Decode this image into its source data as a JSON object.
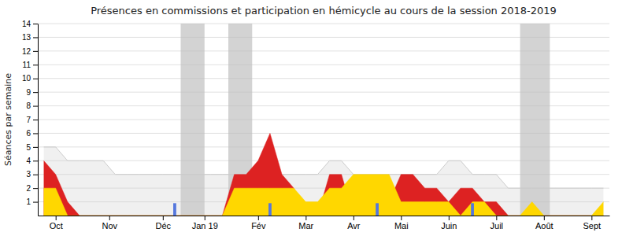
{
  "chart_data": {
    "type": "area",
    "title": "Présences en commissions et participation en hémicycle au cours de la session 2018-2019",
    "y_label": "Séances par semaine",
    "x": [
      0,
      1,
      2,
      3,
      4,
      5,
      6,
      7,
      8,
      9,
      10,
      11,
      12,
      13,
      14,
      15,
      16,
      17,
      18,
      19,
      20,
      21,
      22,
      23,
      24,
      25,
      26,
      27,
      28,
      29,
      30,
      31,
      32,
      33,
      34,
      35,
      36,
      37,
      38,
      39,
      40,
      41,
      42,
      43,
      44,
      45,
      46,
      47
    ],
    "xlim": [
      -0.5,
      47.5
    ],
    "xticks": [
      {
        "value": 1,
        "label": "Oct"
      },
      {
        "value": 5.5,
        "label": "Nov"
      },
      {
        "value": 10,
        "label": "Déc"
      },
      {
        "value": 13.5,
        "label": "Jan 19"
      },
      {
        "value": 18,
        "label": "Fév"
      },
      {
        "value": 22,
        "label": "Mar"
      },
      {
        "value": 26,
        "label": "Avr"
      },
      {
        "value": 30,
        "label": "Mai"
      },
      {
        "value": 34,
        "label": "Juin"
      },
      {
        "value": 38,
        "label": "Juil"
      },
      {
        "value": 42,
        "label": "Août"
      },
      {
        "value": 46,
        "label": "Sept"
      }
    ],
    "ylim": [
      0,
      14
    ],
    "yticks": [
      1,
      2,
      3,
      4,
      5,
      6,
      7,
      8,
      9,
      10,
      11,
      12,
      13,
      14
    ],
    "grid": true,
    "shaded_regions": {
      "color": "#bbbbbb",
      "ranges": [
        [
          11.5,
          13.5
        ],
        [
          15.5,
          17.5
        ],
        [
          40.0,
          42.5
        ]
      ]
    },
    "series": [
      {
        "type": "area",
        "color": "#cccccc",
        "values": [
          5,
          5,
          4,
          4,
          4,
          4,
          3,
          3,
          3,
          3,
          3,
          3,
          3,
          3,
          3,
          3,
          3,
          3,
          3,
          3,
          3,
          3,
          3,
          3,
          4,
          4,
          3,
          3,
          3,
          3,
          3,
          3,
          3,
          3,
          4,
          4,
          3,
          3,
          3,
          2,
          2,
          2,
          2,
          2,
          2,
          2,
          2,
          2
        ]
      },
      {
        "type": "area",
        "color": "#DD2222",
        "values": [
          4,
          3,
          1,
          0,
          0,
          0,
          0,
          0,
          0,
          0,
          0,
          0,
          0,
          0,
          0,
          0,
          3,
          3,
          4,
          6,
          3,
          2,
          0,
          0,
          3,
          3,
          0,
          0,
          1,
          1,
          3,
          3,
          2,
          2,
          1,
          2,
          2,
          1,
          1,
          0,
          0,
          0,
          0,
          0,
          0,
          0,
          0,
          0
        ]
      },
      {
        "type": "area",
        "color": "#FFD700",
        "values": [
          2,
          2,
          0,
          0,
          0,
          0,
          0,
          0,
          0,
          0,
          0,
          0,
          0,
          0,
          0,
          0,
          2,
          2,
          2,
          2,
          2,
          2,
          1,
          1,
          2,
          2,
          3,
          3,
          3,
          3,
          1,
          1,
          1,
          1,
          1,
          0,
          1,
          1,
          0,
          0,
          0,
          1,
          0,
          0,
          0,
          0,
          0,
          1
        ]
      },
      {
        "type": "bar",
        "color": "#5577DD",
        "x": [
          11,
          19,
          28,
          36
        ],
        "values": [
          0.9,
          0.9,
          0.9,
          0.9
        ]
      }
    ]
  }
}
